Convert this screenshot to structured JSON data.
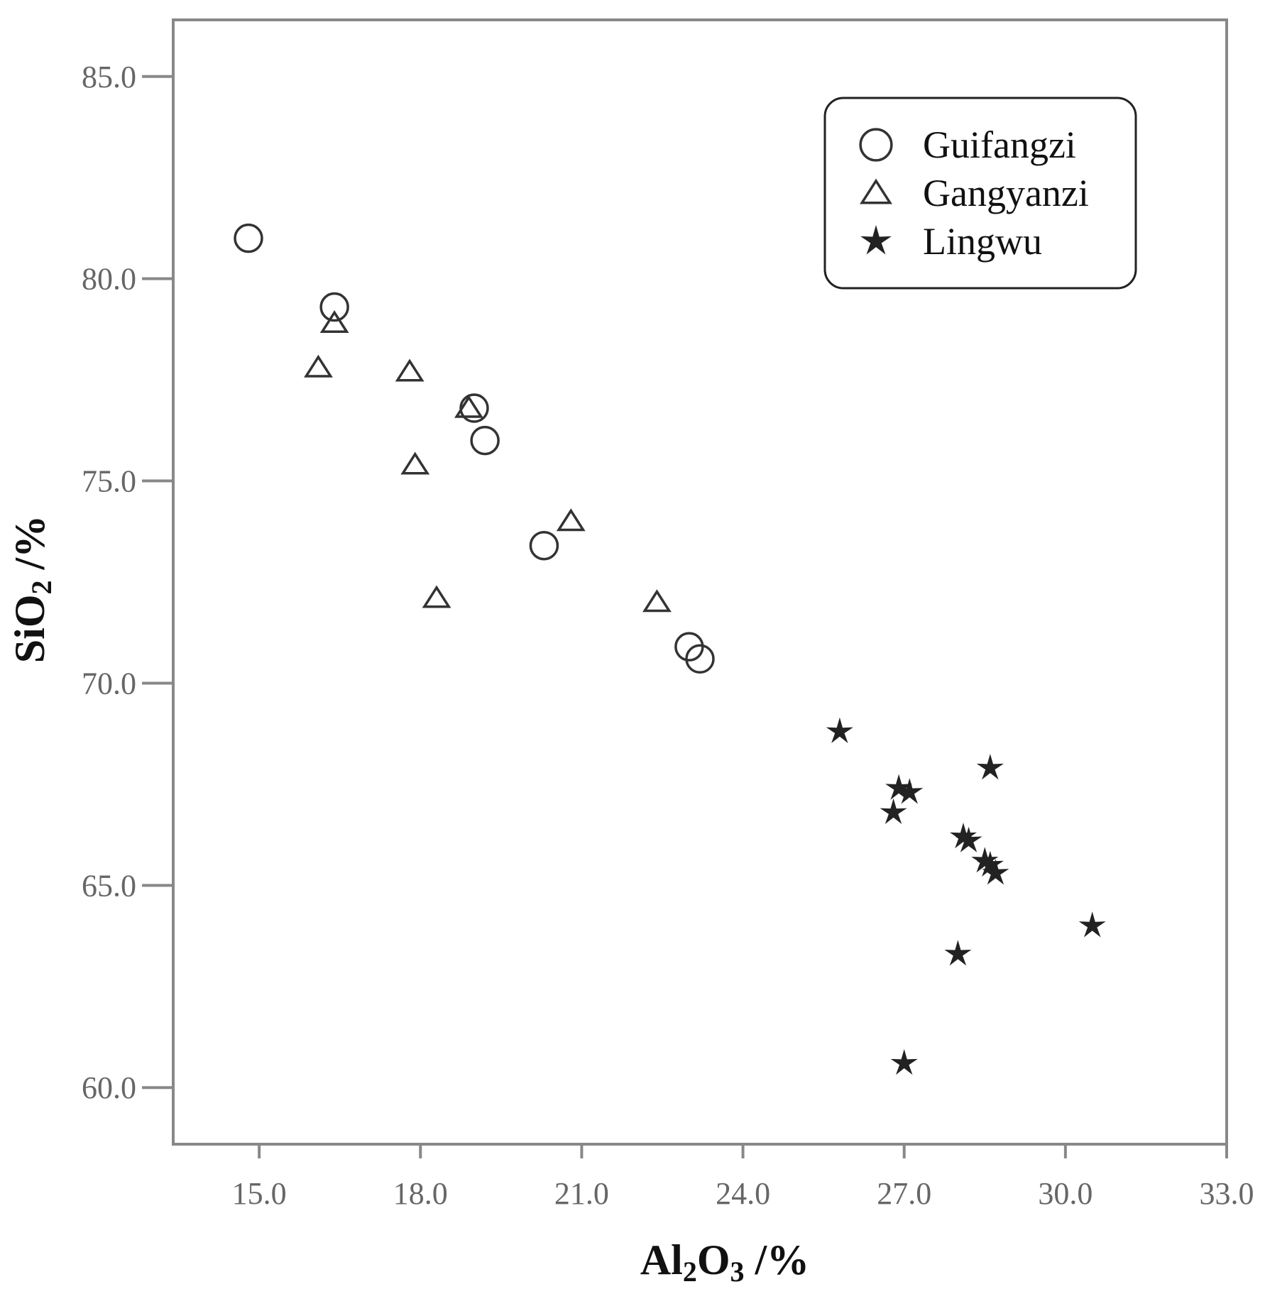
{
  "chart_data": {
    "type": "scatter",
    "xlabel": {
      "main": "Al",
      "sub1": "2",
      "mid": "O",
      "sub2": "3",
      "unit": " /%"
    },
    "ylabel": {
      "main": "SiO",
      "sub": "2",
      "unit": " /%"
    },
    "xlim": [
      13.4,
      33.0
    ],
    "ylim": [
      58.6,
      86.4
    ],
    "xticks": [
      "15.0",
      "18.0",
      "21.0",
      "24.0",
      "27.0",
      "30.0",
      "33.0"
    ],
    "yticks": [
      "60.0",
      "65.0",
      "70.0",
      "75.0",
      "80.0",
      "85.0"
    ],
    "legend_position": "top-right",
    "grid": false,
    "series": [
      {
        "name": "Guifangzi",
        "marker": "circle",
        "points": [
          {
            "x": 14.8,
            "y": 81.0
          },
          {
            "x": 16.4,
            "y": 79.3
          },
          {
            "x": 19.0,
            "y": 76.8
          },
          {
            "x": 19.2,
            "y": 76.0
          },
          {
            "x": 20.3,
            "y": 73.4
          },
          {
            "x": 23.0,
            "y": 70.9
          },
          {
            "x": 23.2,
            "y": 70.6
          }
        ]
      },
      {
        "name": "Gangyanzi",
        "marker": "triangle",
        "points": [
          {
            "x": 16.4,
            "y": 78.9
          },
          {
            "x": 16.1,
            "y": 77.8
          },
          {
            "x": 17.8,
            "y": 77.7
          },
          {
            "x": 18.9,
            "y": 76.8
          },
          {
            "x": 17.9,
            "y": 75.4
          },
          {
            "x": 20.8,
            "y": 74.0
          },
          {
            "x": 18.3,
            "y": 72.1
          },
          {
            "x": 22.4,
            "y": 72.0
          }
        ]
      },
      {
        "name": "Lingwu",
        "marker": "star",
        "points": [
          {
            "x": 25.8,
            "y": 68.8
          },
          {
            "x": 28.6,
            "y": 67.9
          },
          {
            "x": 26.9,
            "y": 67.4
          },
          {
            "x": 27.1,
            "y": 67.3
          },
          {
            "x": 26.8,
            "y": 66.8
          },
          {
            "x": 28.1,
            "y": 66.2
          },
          {
            "x": 28.2,
            "y": 66.1
          },
          {
            "x": 28.5,
            "y": 65.6
          },
          {
            "x": 28.6,
            "y": 65.5
          },
          {
            "x": 28.7,
            "y": 65.3
          },
          {
            "x": 30.5,
            "y": 64.0
          },
          {
            "x": 28.0,
            "y": 63.3
          },
          {
            "x": 27.0,
            "y": 60.6
          }
        ]
      }
    ]
  }
}
